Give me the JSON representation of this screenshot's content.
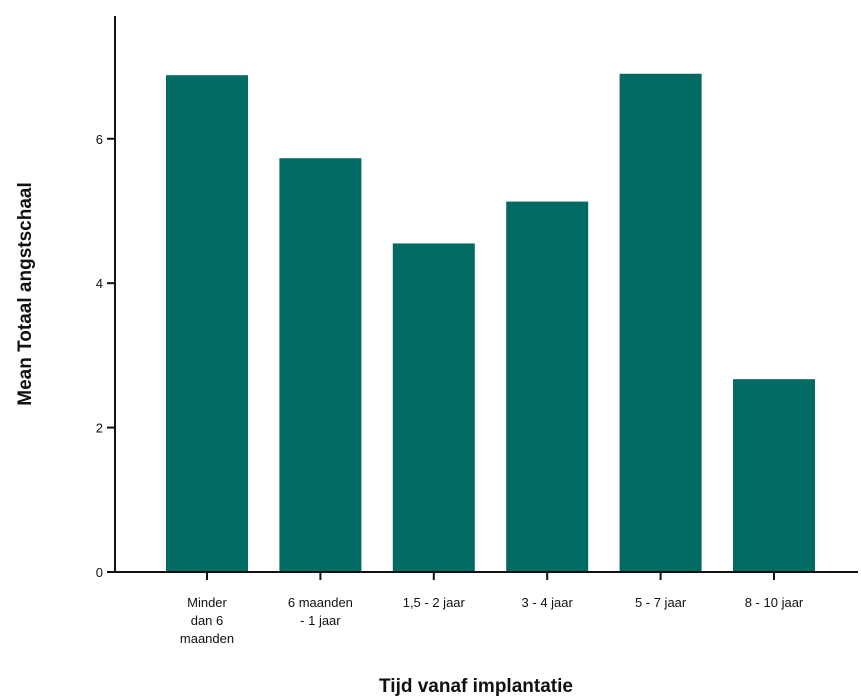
{
  "chart_data": {
    "type": "bar",
    "categories": [
      [
        "Minder",
        "dan 6",
        "maanden"
      ],
      [
        "6 maanden",
        "- 1 jaar"
      ],
      [
        "1,5 - 2 jaar"
      ],
      [
        "3 - 4 jaar"
      ],
      [
        "5 - 7 jaar"
      ],
      [
        "8 - 10 jaar"
      ]
    ],
    "values": [
      6.88,
      5.73,
      4.55,
      5.13,
      6.9,
      2.67
    ],
    "xlabel": "Tijd vanaf implantatie",
    "ylabel": "Mean Totaal angstschaal",
    "yticks": [
      0,
      2,
      4,
      6
    ],
    "ylim": [
      0,
      7.7
    ],
    "bar_color": "#016b63",
    "grid": false
  }
}
